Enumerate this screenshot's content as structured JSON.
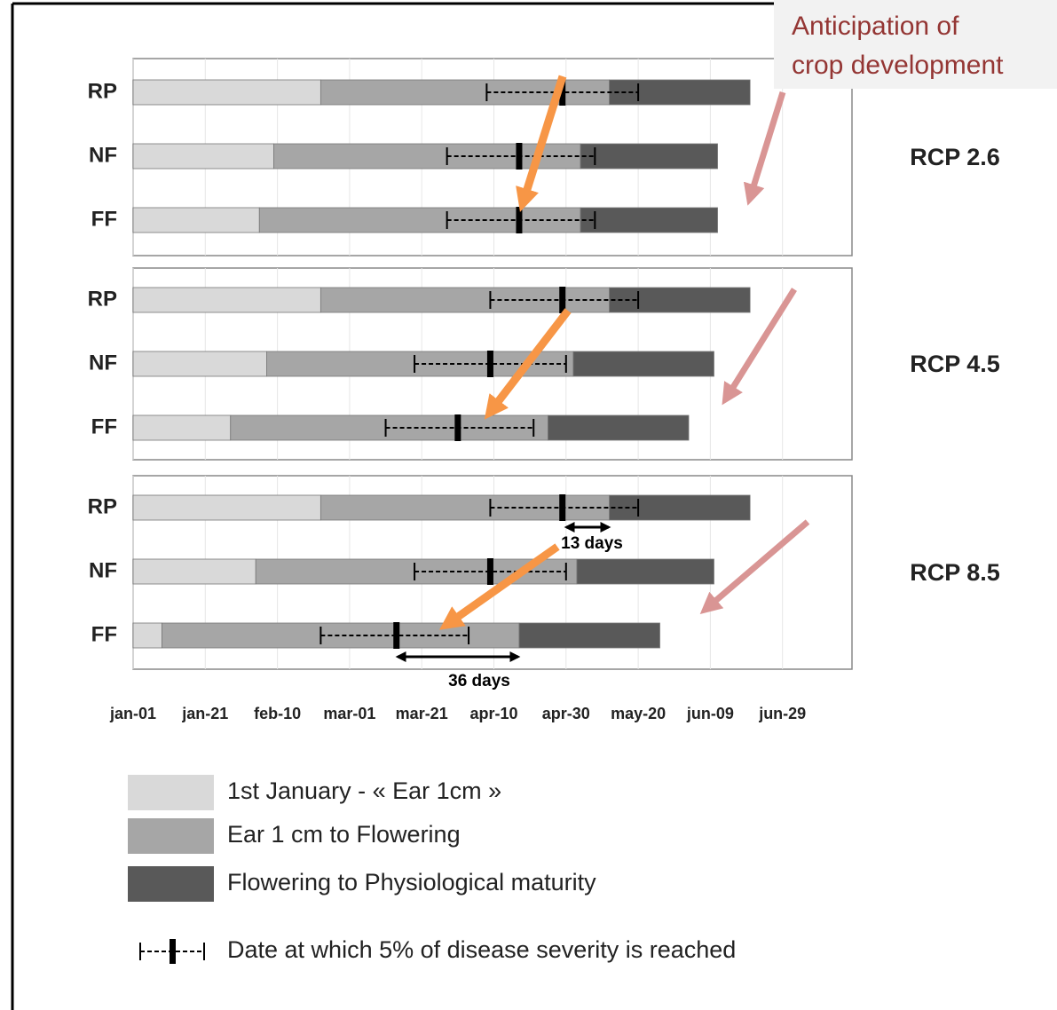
{
  "chart_data": {
    "type": "stacked-barh",
    "series": [
      {
        "name": "1st January - « Ear 1cm »",
        "color": "#d9d9d9"
      },
      {
        "name": "Ear 1 cm to Flowering",
        "color": "#a6a6a6"
      },
      {
        "name": "Flowering to Physiological maturity",
        "color": "#595959"
      }
    ],
    "disease_label": "Date at which 5% of disease severity is reached",
    "xlim": [
      0,
      200
    ],
    "xticks": [
      {
        "value": 0,
        "label": "jan-01"
      },
      {
        "value": 20,
        "label": "jan-21"
      },
      {
        "value": 40,
        "label": "feb-10"
      },
      {
        "value": 60,
        "label": "mar-01"
      },
      {
        "value": 80,
        "label": "mar-21"
      },
      {
        "value": 100,
        "label": "apr-10"
      },
      {
        "value": 120,
        "label": "apr-30"
      },
      {
        "value": 140,
        "label": "may-20"
      },
      {
        "value": 160,
        "label": "jun-09"
      },
      {
        "value": 180,
        "label": "jun-29"
      }
    ],
    "grid": true,
    "panels": [
      {
        "label": "RCP 2.6",
        "categories": [
          "RP",
          "NF",
          "FF"
        ],
        "series_values": [
          [
            52,
            39,
            35
          ],
          [
            80,
            85,
            89
          ],
          [
            39,
            38,
            38
          ]
        ],
        "disease": {
          "values": [
            119,
            107,
            107
          ],
          "low": [
            98,
            87,
            87
          ],
          "high": [
            140,
            128,
            128
          ]
        }
      },
      {
        "label": "RCP 4.5",
        "categories": [
          "RP",
          "NF",
          "FF"
        ],
        "series_values": [
          [
            52,
            37,
            27
          ],
          [
            80,
            85,
            88
          ],
          [
            39,
            39,
            39
          ]
        ],
        "disease": {
          "values": [
            119,
            99,
            90
          ],
          "low": [
            99,
            78,
            70
          ],
          "high": [
            140,
            120,
            111
          ]
        }
      },
      {
        "label": "RCP 8.5",
        "categories": [
          "RP",
          "NF",
          "FF"
        ],
        "series_values": [
          [
            52,
            34,
            8
          ],
          [
            80,
            89,
            99
          ],
          [
            39,
            38,
            39
          ]
        ],
        "disease": {
          "values": [
            119,
            99,
            73
          ],
          "low": [
            99,
            78,
            52
          ],
          "high": [
            140,
            120,
            93
          ]
        }
      }
    ],
    "annotations": [
      "13 days",
      "36 days",
      "Anticipation of crop development"
    ]
  }
}
